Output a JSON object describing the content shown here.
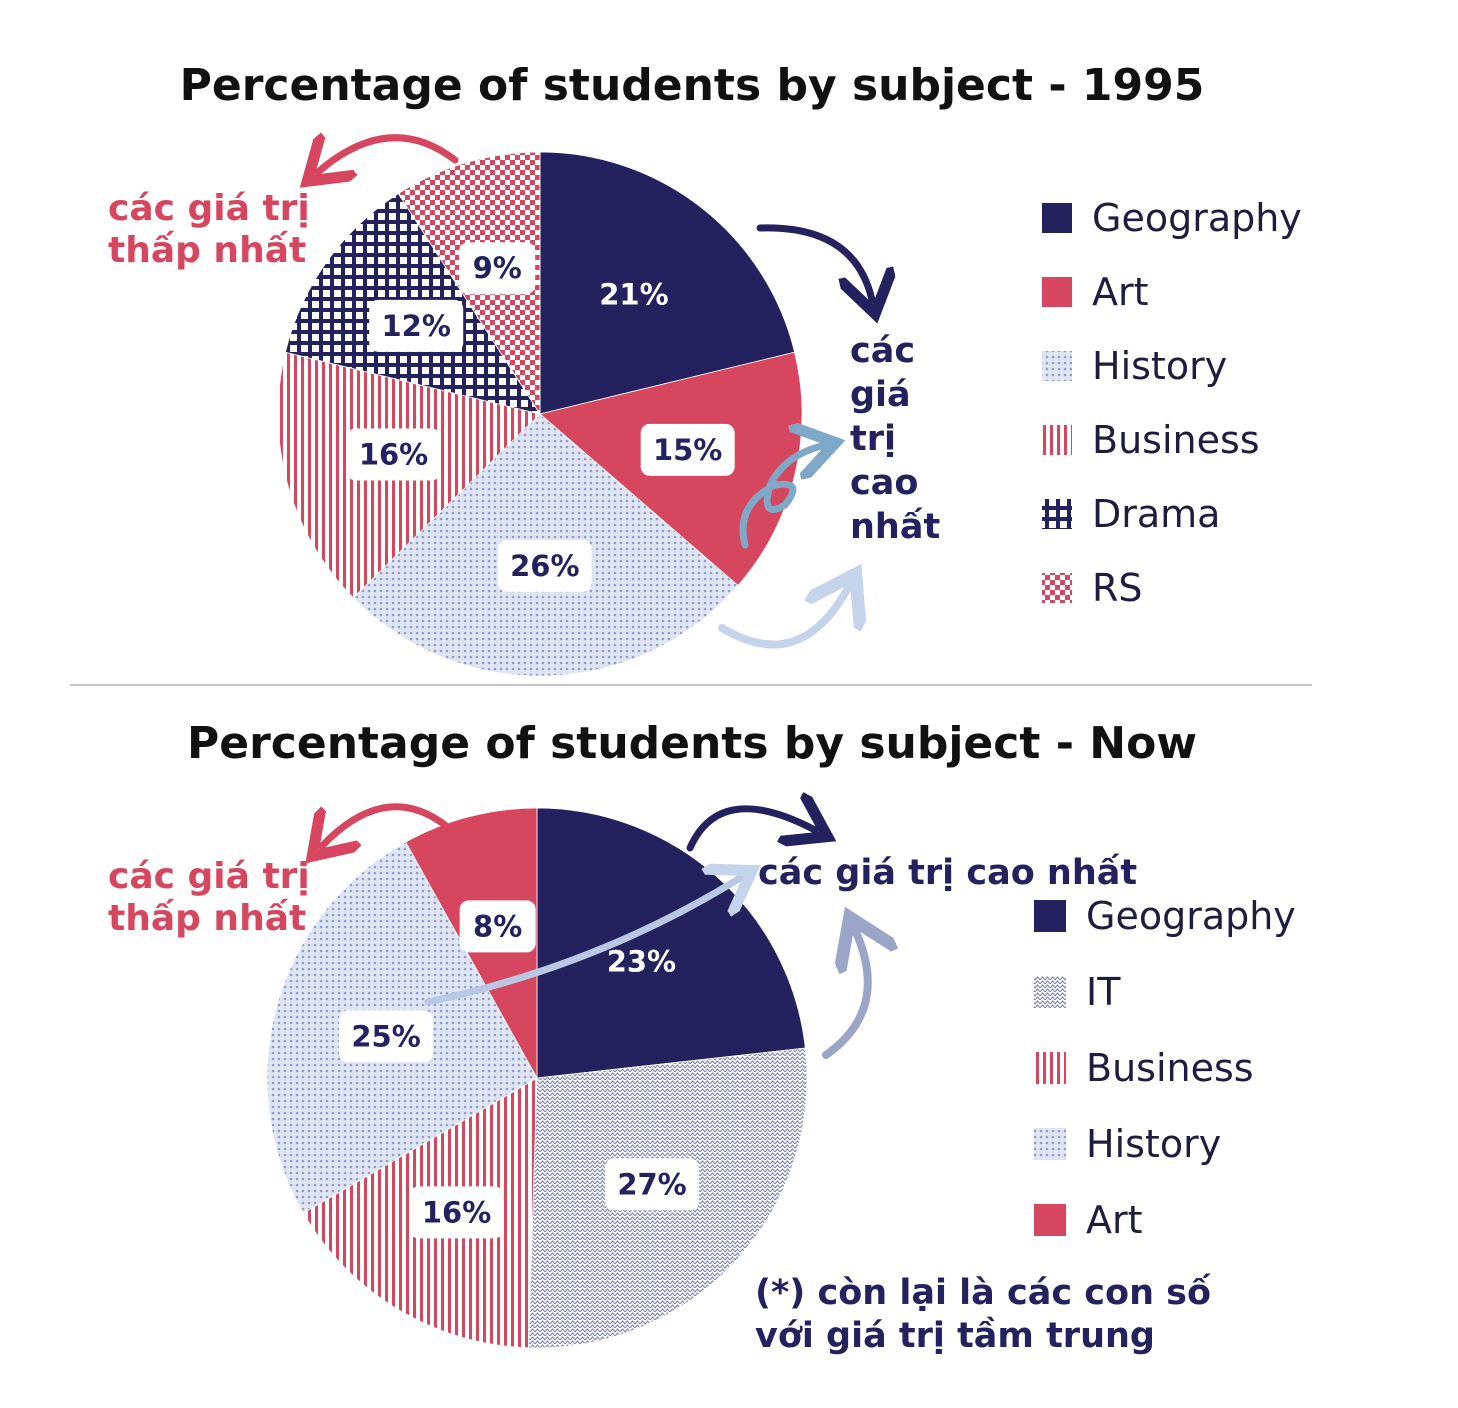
{
  "chart_data": [
    {
      "type": "pie",
      "title": "Percentage of students by subject - 1995",
      "slices": [
        {
          "label": "Geography",
          "value": 21,
          "display": "21%"
        },
        {
          "label": "Art",
          "value": 15,
          "display": "15%"
        },
        {
          "label": "History",
          "value": 26,
          "display": "26%"
        },
        {
          "label": "Business",
          "value": 16,
          "display": "16%"
        },
        {
          "label": "Drama",
          "value": 12,
          "display": "12%"
        },
        {
          "label": "RS",
          "value": 9,
          "display": "9%"
        }
      ],
      "legend": [
        "Geography",
        "Art",
        "History",
        "Business",
        "Drama",
        "RS"
      ],
      "legend_position": "right",
      "annotations": {
        "lowest": [
          "các giá trị",
          "thấp nhất"
        ],
        "highest": [
          "các",
          "giá",
          "trị",
          "cao",
          "nhất"
        ]
      }
    },
    {
      "type": "pie",
      "title": "Percentage of students by subject - Now",
      "slices": [
        {
          "label": "Geography",
          "value": 23,
          "display": "23%"
        },
        {
          "label": "IT",
          "value": 27,
          "display": "27%"
        },
        {
          "label": "Business",
          "value": 16,
          "display": "16%"
        },
        {
          "label": "History",
          "value": 25,
          "display": "25%"
        },
        {
          "label": "Art",
          "value": 8,
          "display": "8%"
        }
      ],
      "legend": [
        "Geography",
        "IT",
        "Business",
        "History",
        "Art"
      ],
      "legend_position": "right",
      "annotations": {
        "lowest": [
          "các giá trị",
          "thấp nhất"
        ],
        "highest": "các giá trị cao nhất",
        "note": [
          "(*) còn lại là các con số",
          "với giá trị tầm trung"
        ]
      }
    }
  ],
  "colors": {
    "navy": "#23225f",
    "red": "#d6465f",
    "light_blue": "#b9c6e4",
    "arrow_light": "#c5d4ea",
    "arrow_mid": "#9aa5c8",
    "arrow_swirl": "#7fa8c8"
  },
  "patterns": {
    "Geography": "solid-navy",
    "Art": "solid-red",
    "History": "dots-light-blue",
    "Business": "vertical-stripes-red",
    "Drama": "grid-navy",
    "RS": "checker-red",
    "IT": "zigzag-navy"
  }
}
